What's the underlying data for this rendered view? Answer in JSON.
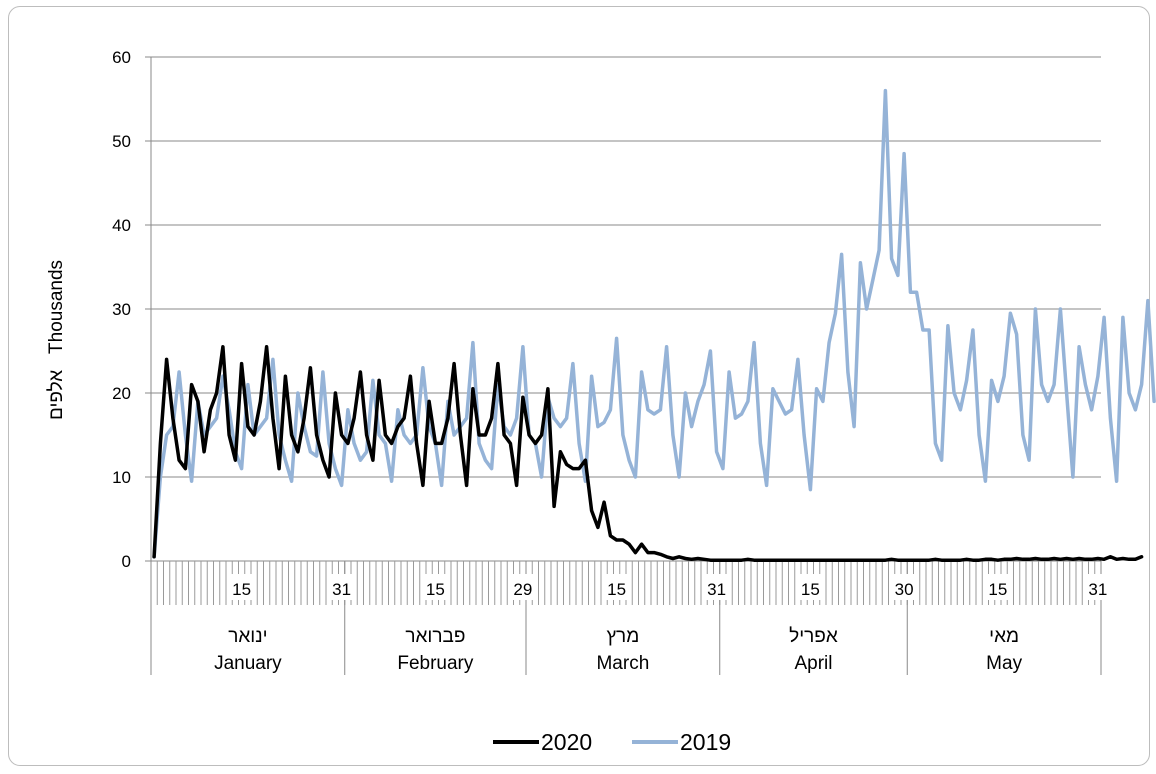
{
  "chart_data": {
    "type": "line",
    "ylabel": "אלפים   Thousands",
    "ylim": [
      0,
      60
    ],
    "yticks": [
      0,
      10,
      20,
      30,
      40,
      50,
      60
    ],
    "grid": true,
    "legend_position": "bottom",
    "months": [
      {
        "he": "ינואר",
        "en": "January",
        "days": 31
      },
      {
        "he": "פברואר",
        "en": "February",
        "days": 29
      },
      {
        "he": "מרץ",
        "en": "March",
        "days": 31
      },
      {
        "he": "אפריל",
        "en": "April",
        "days": 30
      },
      {
        "he": "מאי",
        "en": "May",
        "days": 31
      }
    ],
    "day_tick_labels": [
      {
        "month": 0,
        "day": 15,
        "label": "15"
      },
      {
        "month": 0,
        "day": 31,
        "label": "31"
      },
      {
        "month": 1,
        "day": 15,
        "label": "15"
      },
      {
        "month": 1,
        "day": 29,
        "label": "29"
      },
      {
        "month": 2,
        "day": 15,
        "label": "15"
      },
      {
        "month": 2,
        "day": 31,
        "label": "31"
      },
      {
        "month": 3,
        "day": 15,
        "label": "15"
      },
      {
        "month": 3,
        "day": 30,
        "label": "30"
      },
      {
        "month": 4,
        "day": 15,
        "label": "15"
      },
      {
        "month": 4,
        "day": 31,
        "label": "31"
      }
    ],
    "series": [
      {
        "name": "2020",
        "color": "#000000",
        "values": [
          0.5,
          14,
          24,
          17,
          12,
          11,
          21,
          19,
          13,
          18,
          20,
          25.5,
          15,
          12,
          23.5,
          16,
          15,
          19,
          25.5,
          17,
          11,
          22,
          15,
          13,
          17,
          23,
          15,
          12,
          10,
          20,
          15,
          14,
          17,
          22.5,
          15,
          12,
          21.5,
          15,
          14,
          16,
          17,
          22,
          14,
          9,
          19,
          14,
          14,
          17,
          23.5,
          15,
          9,
          20.5,
          15,
          15,
          17,
          23.5,
          15,
          14,
          9,
          19.5,
          15,
          14,
          15,
          20.5,
          6.5,
          13,
          11.5,
          11,
          11,
          12,
          6,
          4,
          7,
          3,
          2.5,
          2.5,
          2,
          1,
          2,
          1,
          1,
          0.8,
          0.5,
          0.3,
          0.5,
          0.3,
          0.2,
          0.3,
          0.2,
          0.1,
          0.1,
          0.1,
          0.1,
          0.1,
          0.1,
          0.2,
          0.1,
          0.1,
          0.1,
          0.1,
          0.1,
          0.1,
          0.1,
          0.1,
          0.1,
          0.1,
          0.1,
          0.1,
          0.1,
          0.1,
          0.1,
          0.1,
          0.1,
          0.1,
          0.1,
          0.1,
          0.1,
          0.1,
          0.2,
          0.1,
          0.1,
          0.1,
          0.1,
          0.1,
          0.1,
          0.2,
          0.1,
          0.1,
          0.1,
          0.1,
          0.2,
          0.1,
          0.1,
          0.2,
          0.2,
          0.1,
          0.2,
          0.2,
          0.3,
          0.2,
          0.2,
          0.3,
          0.2,
          0.2,
          0.3,
          0.2,
          0.3,
          0.2,
          0.3,
          0.2,
          0.2,
          0.3,
          0.2,
          0.5,
          0.2,
          0.3,
          0.2,
          0.2,
          0.5
        ]
      },
      {
        "name": "2019",
        "color": "#95b3d7",
        "values": [
          0.5,
          10,
          15,
          16,
          22.5,
          15,
          9.5,
          19,
          15,
          16,
          17,
          22,
          18,
          13,
          11,
          21,
          15,
          16,
          17,
          24,
          15,
          12,
          9.5,
          20,
          16,
          13,
          12.5,
          22.5,
          14,
          11,
          9,
          18,
          14,
          12,
          13,
          21.5,
          15,
          14,
          9.5,
          18,
          15,
          14,
          15,
          23,
          16,
          14,
          9,
          19,
          15,
          16,
          17,
          26,
          14,
          12,
          11,
          21,
          16,
          15,
          17,
          25.5,
          15,
          14,
          10,
          19.5,
          17,
          16,
          17,
          23.5,
          14,
          9.5,
          22,
          16,
          16.5,
          18,
          26.5,
          15,
          12,
          10,
          22.5,
          18,
          17.5,
          18,
          25.5,
          15,
          10,
          20,
          16,
          19,
          21,
          25,
          13,
          11,
          22.5,
          17,
          17.5,
          19,
          26,
          14,
          9,
          20.5,
          19,
          17.5,
          18,
          24,
          15,
          8.5,
          20.5,
          19,
          26,
          29.5,
          36.5,
          22.5,
          16,
          35.5,
          30,
          33.5,
          37,
          56,
          36,
          34,
          48.5,
          32,
          32,
          27.5,
          27.5,
          14,
          12,
          28,
          20,
          18,
          21.5,
          27.5,
          15,
          9.5,
          21.5,
          19,
          22,
          29.5,
          27,
          15,
          12,
          30,
          21,
          19,
          21,
          30,
          20,
          10,
          25.5,
          21,
          18,
          22,
          29,
          17,
          9.5,
          29,
          20,
          18,
          21,
          31,
          19
        ]
      }
    ]
  }
}
